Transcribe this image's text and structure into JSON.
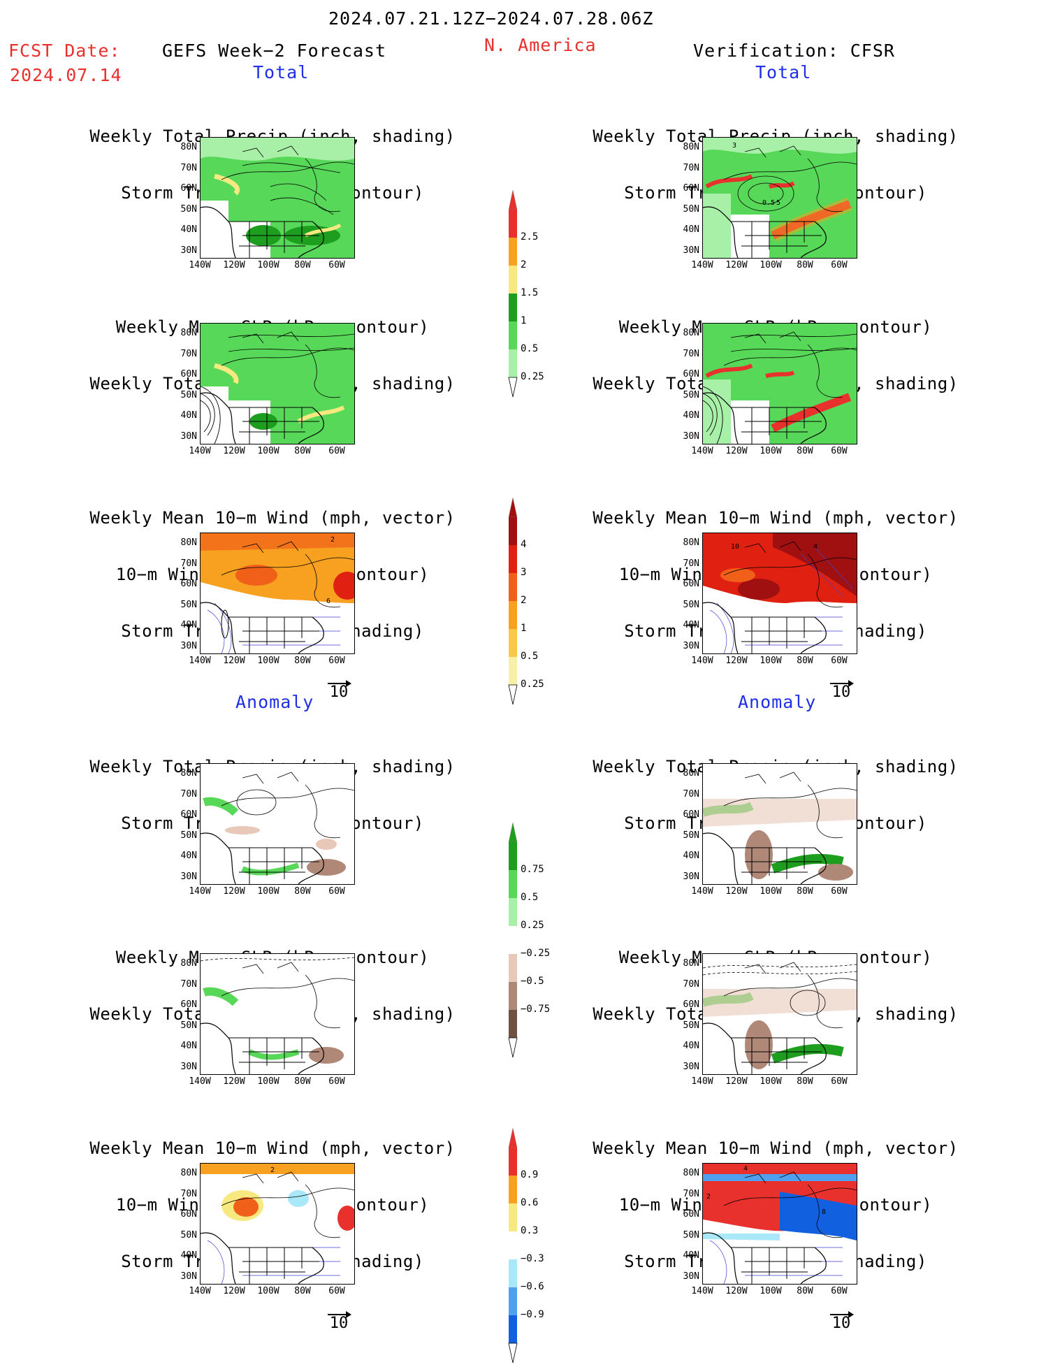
{
  "header": {
    "date_range": "2024.07.21.12Z−2024.07.28.06Z",
    "fcst_label": "FCST Date:",
    "fcst_date": "2024.07.14",
    "model": "GEFS Week−2 Forecast",
    "region": "N. America",
    "verification": "Verification: CFSR"
  },
  "sections": {
    "total": "Total",
    "anomaly": "Anomaly"
  },
  "titles": {
    "precip_storm": [
      "Weekly Total Precip (inch, shading)",
      "Storm Track Density (contour)"
    ],
    "slp_precip": [
      "Weekly Mean SLP (hPa, contour)",
      "Weekly Total Precip (inch, shading)"
    ],
    "wind_storm": [
      "Weekly Mean 10−m Wind (mph, vector)",
      "10−m Wind Speed (mph, contour)",
      "Storm Track Density (shading)"
    ]
  },
  "axes": {
    "lat_labels": [
      "80N",
      "70N",
      "60N",
      "50N",
      "40N",
      "30N"
    ],
    "lon_labels": [
      "140W",
      "120W",
      "100W",
      "80W",
      "60W"
    ]
  },
  "wind_ref_label": "10",
  "colorbars": {
    "precip_total": {
      "labels": [
        "2.5",
        "2",
        "1.5",
        "1",
        "0.5",
        "0.25"
      ],
      "colors": [
        "#e8302c",
        "#f8a020",
        "#f8e880",
        "#1e9e1e",
        "#58d858",
        "#a8f0a8"
      ]
    },
    "storm_total": {
      "labels": [
        "4",
        "3",
        "2",
        "1",
        "0.5",
        "0.25"
      ],
      "colors": [
        "#a01010",
        "#e02010",
        "#f06018",
        "#f8a020",
        "#f8c848",
        "#f8f0a8"
      ]
    },
    "precip_anom": {
      "labels": [
        "0.75",
        "0.5",
        "0.25",
        "−0.25",
        "−0.5",
        "−0.75"
      ],
      "colors": [
        "#1e9e1e",
        "#58d858",
        "#a8f0a8",
        "#ffffff",
        "#e8c8b8",
        "#b08878",
        "#705040"
      ]
    },
    "storm_anom": {
      "labels": [
        "0.9",
        "0.6",
        "0.3",
        "−0.3",
        "−0.6",
        "−0.9"
      ],
      "colors": [
        "#e8302c",
        "#f8a020",
        "#f8e880",
        "#ffffff",
        "#a8e8f8",
        "#50a0f0",
        "#1060e0"
      ]
    }
  },
  "panel_annotations": {
    "obs_precip_contour": [
      "3",
      "0.5",
      "5"
    ],
    "fcst_wind_contour": [
      "2",
      "6"
    ],
    "obs_wind_contour": [
      "10",
      "4"
    ],
    "fcst_wind_anom_contour": [
      "2"
    ],
    "obs_wind_anom_contour": [
      "4",
      "2",
      "8"
    ]
  }
}
